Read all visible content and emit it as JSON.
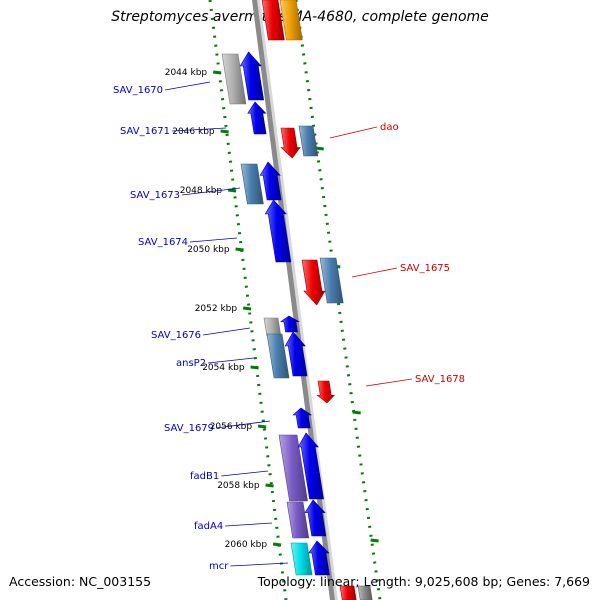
{
  "title": "Streptomyces avermitilis MA-4680, complete genome",
  "footer": {
    "accession": "Accession: NC_003155",
    "summary": "Topology: linear; Length: 9,025,608 bp; Genes: 7,669"
  },
  "colors": {
    "forward_gene": "#0000ee",
    "reverse_gene": "#ee0000",
    "steel_gene": "#4a7fb0",
    "grey_gene": "#b0b0b0",
    "purple_gene": "#7a5cc8",
    "cyan_gene": "#00e0e8",
    "orange_gene": "#f0a000",
    "backbone": "#8a8a8a",
    "ruler": "#008000",
    "left_label": "#0000cc",
    "right_label": "#cc0000"
  },
  "scale_labels": [
    "2044 kbp",
    "2046 kbp",
    "2048 kbp",
    "2050 kbp",
    "2052 kbp",
    "2054 kbp",
    "2056 kbp",
    "2058 kbp",
    "2060 kbp"
  ],
  "left_gene_labels": [
    "SAV_1670",
    "SAV_1671",
    "SAV_1673",
    "SAV_1674",
    "SAV_1676",
    "ansP2",
    "SAV_1679",
    "fadB1",
    "fadA4",
    "mcr"
  ],
  "right_gene_labels": [
    "dao",
    "SAV_1675",
    "SAV_1678"
  ]
}
